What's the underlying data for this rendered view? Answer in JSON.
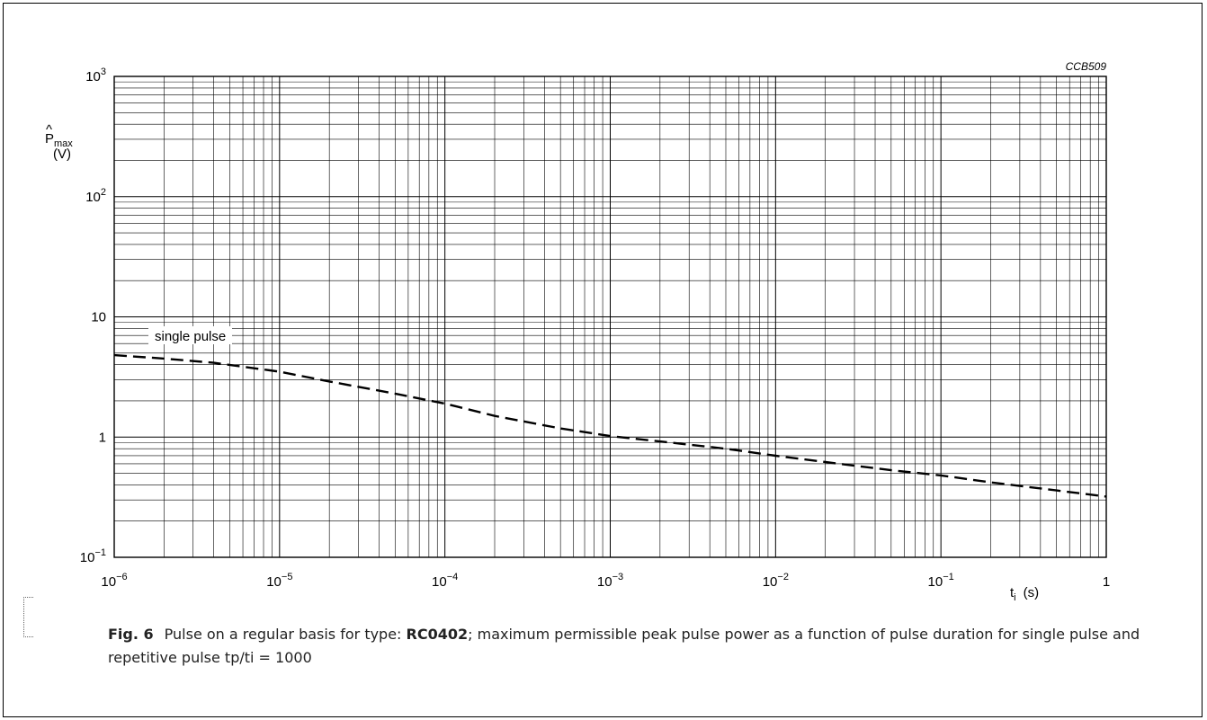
{
  "figure_code": "CCB509",
  "caption": {
    "fig_label": "Fig. 6",
    "text_before": "Pulse on a regular basis for type: ",
    "type_name": "RC0402",
    "text_after": "; maximum permissible peak pulse power as a function of pulse duration for single pulse and repetitive pulse tp/ti = 1000"
  },
  "chart_data": {
    "type": "line",
    "scale": {
      "x": "log",
      "y": "log"
    },
    "grid": true,
    "xlim": [
      1e-06,
      1
    ],
    "ylim": [
      0.1,
      1000
    ],
    "ylabel": {
      "symbol": "P",
      "accent": "^",
      "subscript": "max",
      "unit": "(V)"
    },
    "xlabel": {
      "symbol": "t",
      "subscript": "i",
      "unit": "(s)"
    },
    "x_ticks": [
      {
        "value": 1e-06,
        "base": "10",
        "exp": "−6"
      },
      {
        "value": 1e-05,
        "base": "10",
        "exp": "−5"
      },
      {
        "value": 0.0001,
        "base": "10",
        "exp": "−4"
      },
      {
        "value": 0.001,
        "base": "10",
        "exp": "−3"
      },
      {
        "value": 0.01,
        "base": "10",
        "exp": "−2"
      },
      {
        "value": 0.1,
        "base": "10",
        "exp": "−1"
      },
      {
        "value": 1,
        "base": "1",
        "exp": ""
      }
    ],
    "y_ticks": [
      {
        "value": 0.1,
        "base": "10",
        "exp": "−1"
      },
      {
        "value": 1,
        "base": "1",
        "exp": ""
      },
      {
        "value": 10,
        "base": "10",
        "exp": ""
      },
      {
        "value": 100,
        "base": "10",
        "exp": "2"
      },
      {
        "value": 1000,
        "base": "10",
        "exp": "3"
      }
    ],
    "series": [
      {
        "name": "single pulse",
        "style": "dashed",
        "color": "#000000",
        "x": [
          1e-06,
          2e-06,
          4e-06,
          1e-05,
          2e-05,
          5e-05,
          0.0001,
          0.0002,
          0.0005,
          0.001,
          0.002,
          0.005,
          0.01,
          0.02,
          0.05,
          0.1,
          0.2,
          0.5,
          1
        ],
        "y": [
          4.8,
          4.5,
          4.15,
          3.5,
          2.9,
          2.3,
          1.9,
          1.5,
          1.18,
          1.02,
          0.92,
          0.8,
          0.7,
          0.62,
          0.53,
          0.48,
          0.42,
          0.36,
          0.32
        ]
      }
    ]
  }
}
